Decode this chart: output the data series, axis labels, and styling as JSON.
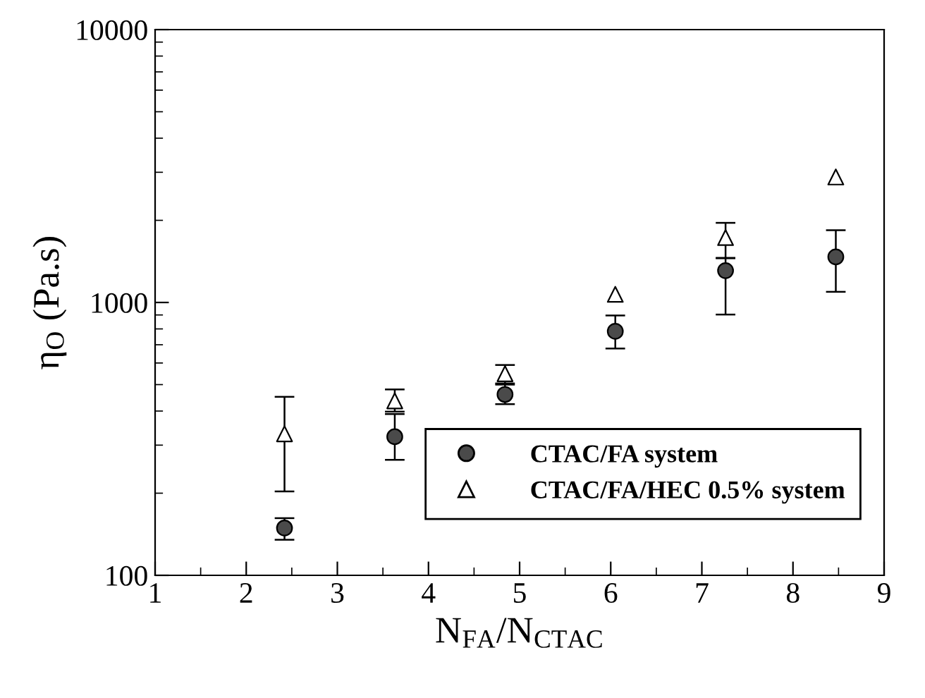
{
  "chart_data": {
    "type": "scatter",
    "xlabel": "N$_{FA}$/N$_{CTAC}$",
    "ylabel": "η$_{O}$ (Pa.s)",
    "x": [
      2.42,
      3.63,
      4.84,
      6.05,
      7.26,
      8.47
    ],
    "series": [
      {
        "name": "CTAC/FA system",
        "color": "#4a4a4a",
        "marker": "circle",
        "values": [
          149,
          322,
          460,
          784,
          1308,
          1469
        ],
        "errors": [
          [
            135,
            162
          ],
          [
            265,
            390
          ],
          [
            424,
            500
          ],
          [
            678,
            896
          ],
          [
            903,
            1457
          ],
          [
            1094,
            1840
          ]
        ]
      },
      {
        "name": "CTAC/FA/HEC 0.5% system",
        "color": "#ffffff",
        "marker": "triangle",
        "values": [
          330,
          436,
          548,
          1071,
          1729,
          2884
        ],
        "errors": [
          [
            203,
            451
          ],
          [
            398,
            480
          ],
          [
            505,
            590
          ],
          null,
          [
            1452,
            1958
          ],
          null
        ]
      }
    ],
    "log": "y",
    "xlim": [
      1,
      9
    ],
    "xticks": [
      1,
      2,
      3,
      4,
      5,
      6,
      7,
      8,
      9
    ],
    "ylim": [
      100,
      10000
    ],
    "yticks": [
      100,
      1000,
      10000
    ],
    "grid": false,
    "legend": "bottom right"
  }
}
